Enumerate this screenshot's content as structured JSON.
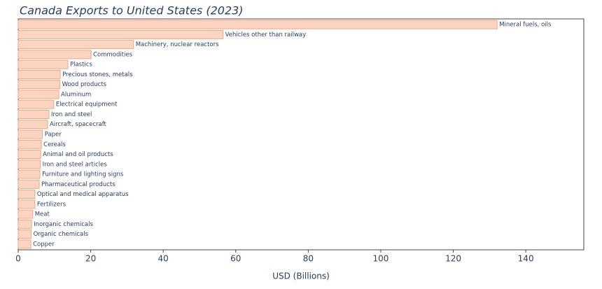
{
  "chart_data": {
    "type": "hbar",
    "title": "Canada Exports to United States (2023)",
    "x_label": "USD (Billions)",
    "categories": [
      "Mineral fuels, oils",
      "Vehicles other than railway",
      "Machinery, nuclear reactors",
      "Commodities",
      "Plastics",
      "Precious stones, metals",
      "Wood products",
      "Aluminum",
      "Electrical equipment",
      "Iron and steel",
      "Aircraft, spacecraft",
      "Paper",
      "Cereals",
      "Animal and oil products",
      "Iron and steel articles",
      "Furniture and lighting signs",
      "Pharmaceutical products",
      "Optical and medical apparatus",
      "Fertilizers",
      "Meat",
      "Inorganic chemicals",
      "Organic chemicals",
      "Copper"
    ],
    "values": [
      132.1,
      56.5,
      31.8,
      20.1,
      13.7,
      11.6,
      11.5,
      11.2,
      9.8,
      8.5,
      8.1,
      6.7,
      6.4,
      6.2,
      6.1,
      6.0,
      5.8,
      4.6,
      4.6,
      4.0,
      3.7,
      3.6,
      3.5
    ],
    "color": "#fcd5c2",
    "edge_color": "#f4a582",
    "xlim": [
      0,
      156
    ],
    "xticks": [
      0,
      20,
      40,
      60,
      80,
      100,
      120,
      140
    ],
    "grid": false
  }
}
